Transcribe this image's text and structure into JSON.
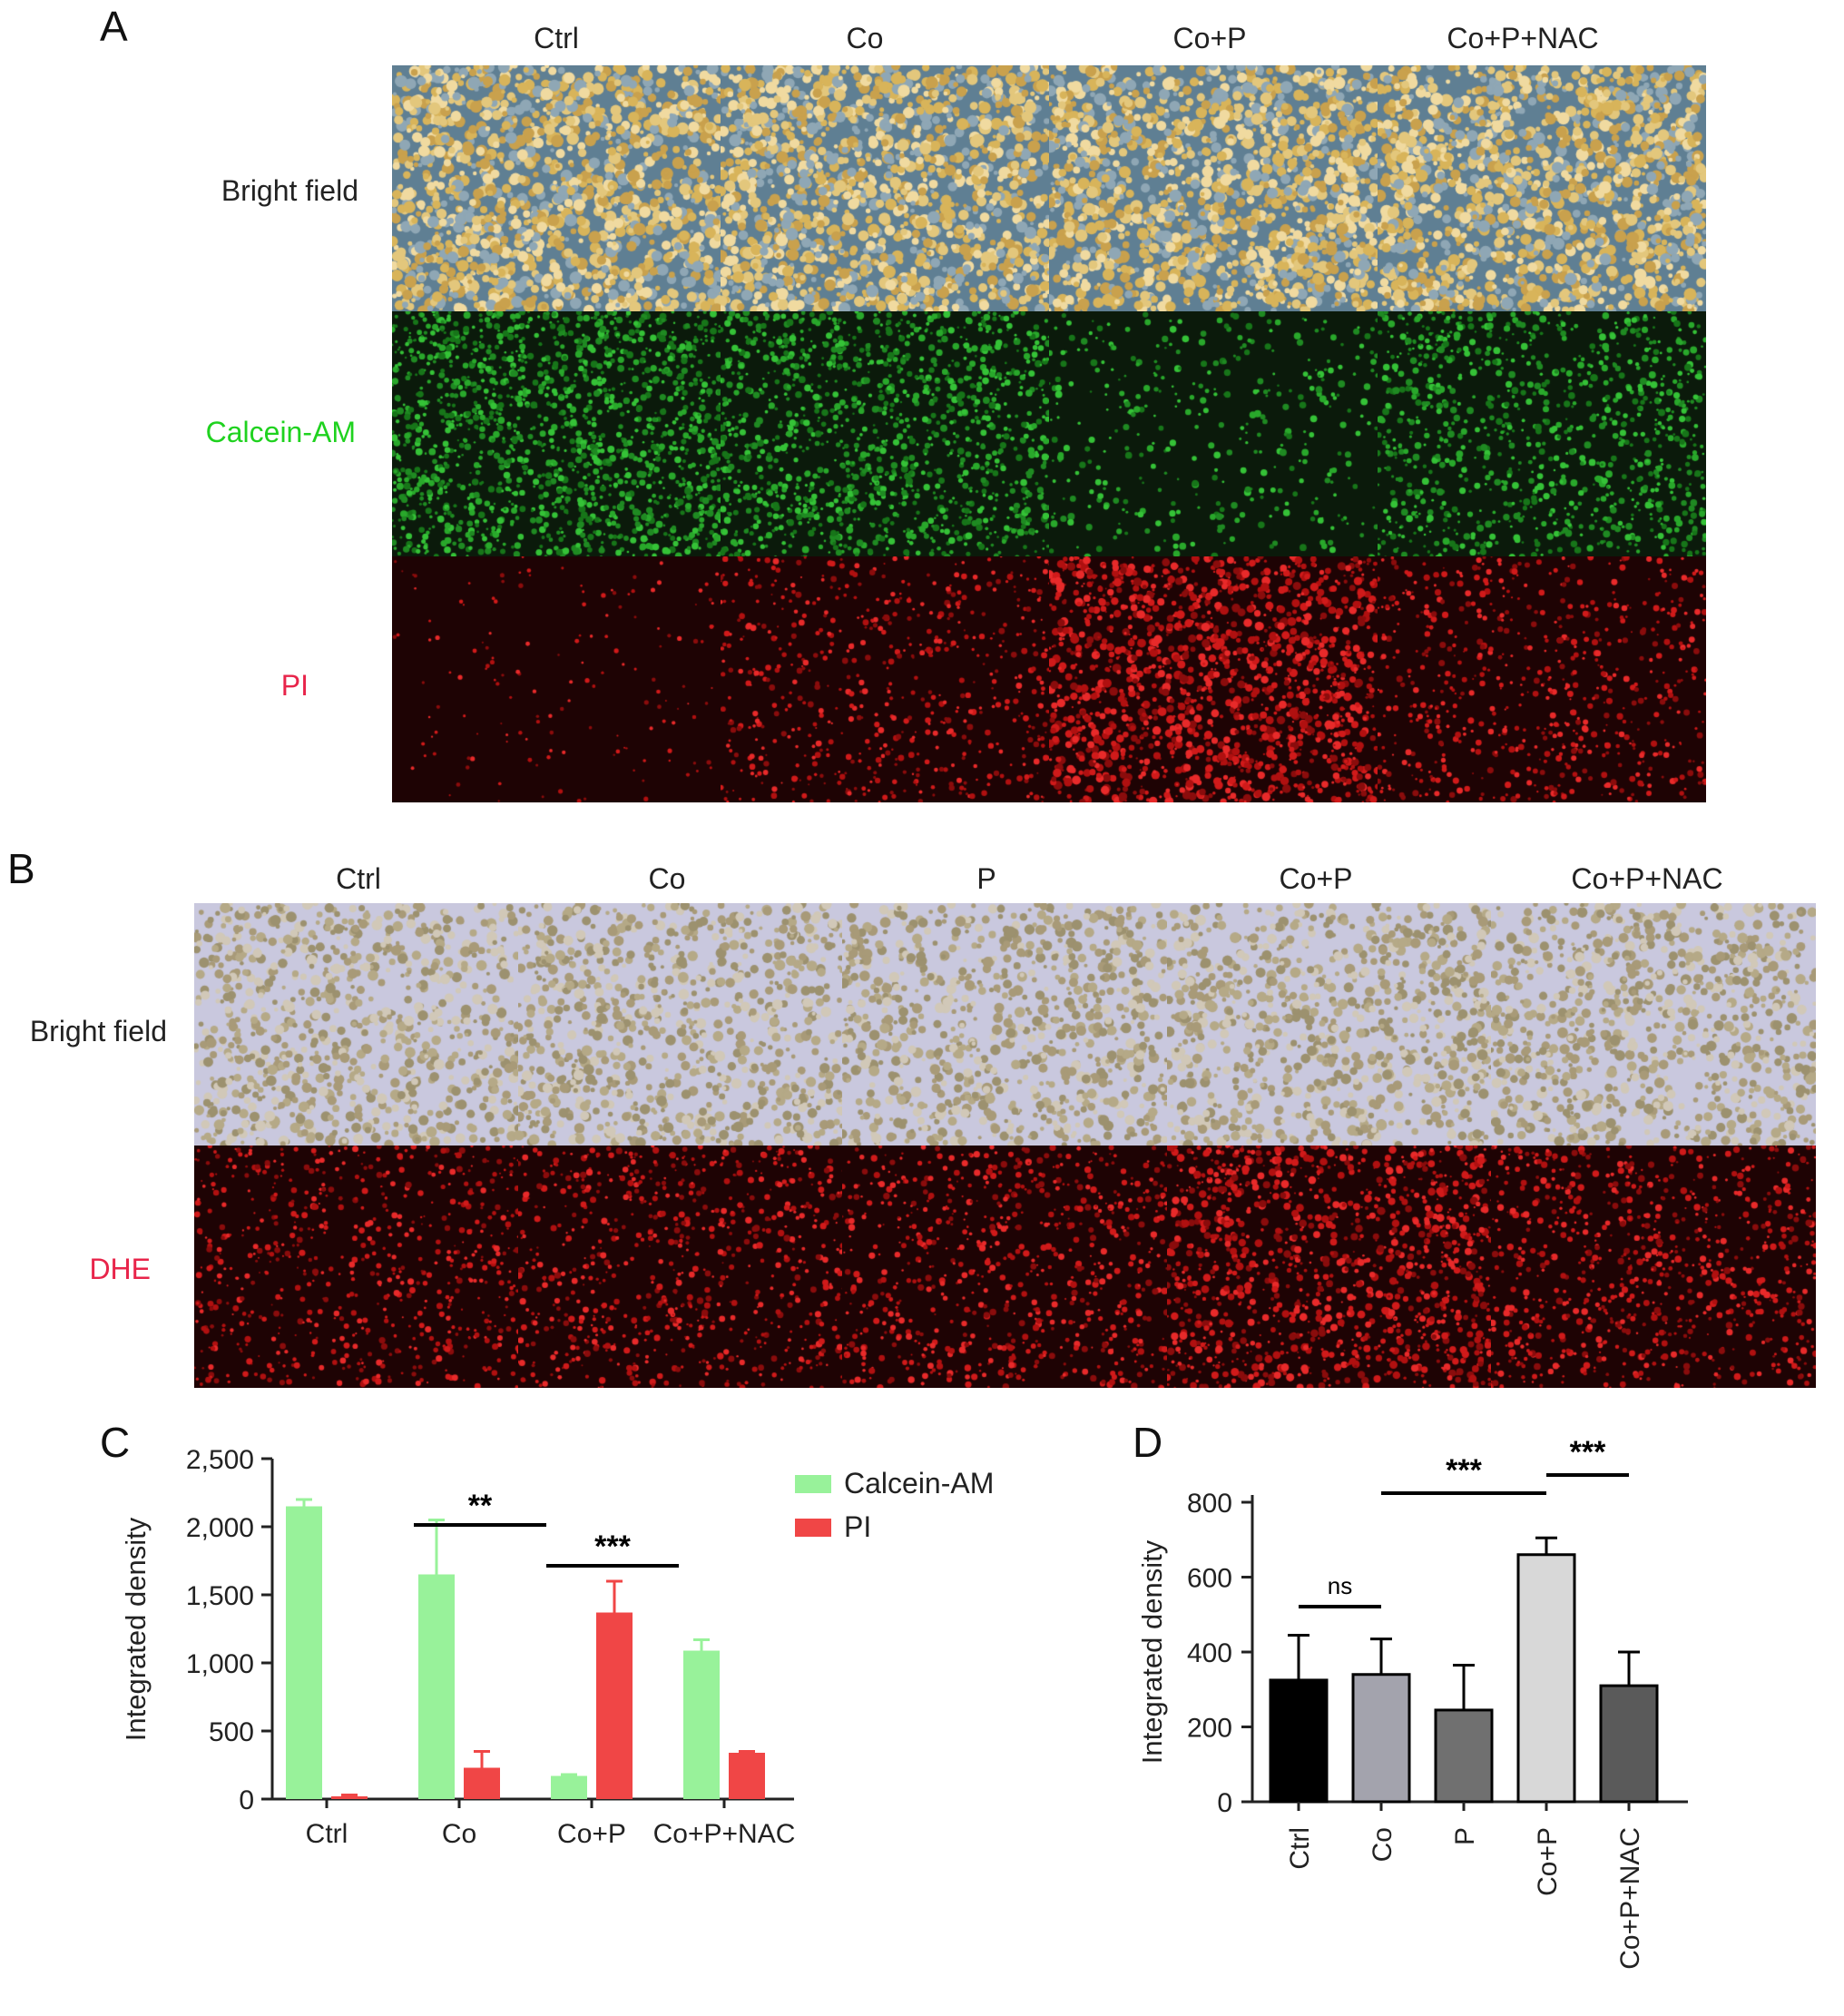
{
  "panel_a": {
    "letter": "A",
    "columns": [
      "Ctrl",
      "Co",
      "Co+P",
      "Co+P+NAC"
    ],
    "rows": [
      {
        "label": "Bright field",
        "color": "#222222",
        "kind": "bright_yellow"
      },
      {
        "label": "Calcein-AM",
        "color": "#1fd21f",
        "kind": "green"
      },
      {
        "label": "PI",
        "color": "#e8244a",
        "kind": "red"
      }
    ],
    "intensity": {
      "green": [
        0.95,
        0.8,
        0.2,
        0.6
      ],
      "red": [
        0.08,
        0.4,
        1.0,
        0.45
      ]
    }
  },
  "panel_b": {
    "letter": "B",
    "columns": [
      "Ctrl",
      "Co",
      "P",
      "Co+P",
      "Co+P+NAC"
    ],
    "rows": [
      {
        "label": "Bright field",
        "color": "#222222",
        "kind": "bright_lavender"
      },
      {
        "label": "DHE",
        "color": "#e8244a",
        "kind": "red"
      }
    ],
    "intensity": {
      "red": [
        0.45,
        0.5,
        0.5,
        0.8,
        0.55
      ]
    }
  },
  "chart_data": [
    {
      "panel": "C",
      "type": "bar",
      "ylabel": "Integrated density",
      "ylim": [
        0,
        2500
      ],
      "yticks": [
        "0",
        "500",
        "1,000",
        "1,500",
        "2,000",
        "2,500"
      ],
      "ytick_values": [
        0,
        500,
        1000,
        1500,
        2000,
        2500
      ],
      "categories": [
        "Ctrl",
        "Co",
        "Co+P",
        "Co+P+NAC"
      ],
      "series": [
        {
          "name": "Calcein-AM",
          "color": "#98f29a",
          "values": [
            2150,
            1650,
            170,
            1090
          ],
          "errors": [
            50,
            400,
            10,
            80
          ]
        },
        {
          "name": "PI",
          "color": "#f04646",
          "values": [
            20,
            230,
            1370,
            340
          ],
          "errors": [
            10,
            120,
            230,
            10
          ]
        }
      ],
      "legend_position": "top-right",
      "annotations": [
        {
          "text": "**",
          "from_category": 1,
          "to_category": 2
        },
        {
          "text": "***",
          "from_category": 2,
          "to_category": 3
        }
      ]
    },
    {
      "panel": "D",
      "type": "bar",
      "ylabel": "Integrated density",
      "ylim": [
        0,
        800
      ],
      "yticks": [
        "0",
        "200",
        "400",
        "600",
        "800"
      ],
      "ytick_values": [
        0,
        200,
        400,
        600,
        800
      ],
      "categories": [
        "Ctrl",
        "Co",
        "P",
        "Co+P",
        "Co+P+NAC"
      ],
      "series": [
        {
          "values": [
            325,
            340,
            245,
            660,
            310
          ],
          "errors": [
            120,
            95,
            120,
            45,
            90
          ],
          "colors": [
            "#000000",
            "#a3a3ad",
            "#707070",
            "#d8d8d8",
            "#5a5a5a"
          ]
        }
      ],
      "annotations": [
        {
          "text": "ns",
          "from_category": 0,
          "to_category": 1
        },
        {
          "text": "***",
          "from_category": 1,
          "to_category": 3
        },
        {
          "text": "***",
          "from_category": 3,
          "to_category": 4
        }
      ]
    }
  ]
}
